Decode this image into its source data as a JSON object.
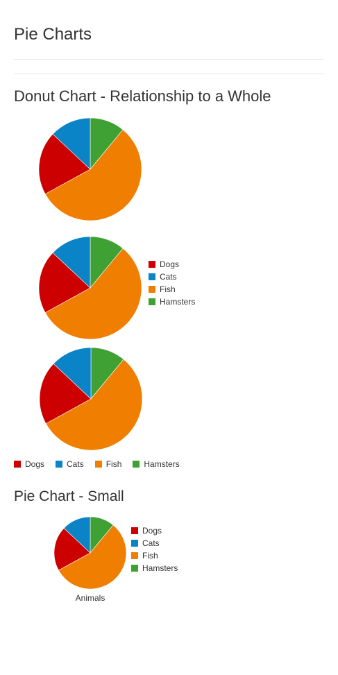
{
  "page": {
    "title": "Pie Charts"
  },
  "sections": [
    {
      "title": "Donut Chart - Relationship to a Whole"
    },
    {
      "title": "Pie Chart - Small"
    }
  ],
  "colors": {
    "Dogs": "#cc0000",
    "Cats": "#0a84c6",
    "Fish": "#f07e00",
    "Hamsters": "#3fa133"
  },
  "chart_data": [
    {
      "type": "pie",
      "title": "",
      "legend": "none",
      "categories": [
        "Dogs",
        "Cats",
        "Fish",
        "Hamsters"
      ],
      "values": [
        20,
        13,
        56,
        11
      ]
    },
    {
      "type": "pie",
      "title": "",
      "legend": "right",
      "categories": [
        "Dogs",
        "Cats",
        "Fish",
        "Hamsters"
      ],
      "values": [
        20,
        13,
        56,
        11
      ]
    },
    {
      "type": "pie",
      "title": "",
      "legend": "bottom",
      "categories": [
        "Dogs",
        "Cats",
        "Fish",
        "Hamsters"
      ],
      "values": [
        20,
        13,
        56,
        11
      ]
    },
    {
      "type": "pie",
      "title": "",
      "xlabel": "Animals",
      "legend": "right",
      "categories": [
        "Dogs",
        "Cats",
        "Fish",
        "Hamsters"
      ],
      "values": [
        20,
        13,
        56,
        11
      ]
    }
  ]
}
